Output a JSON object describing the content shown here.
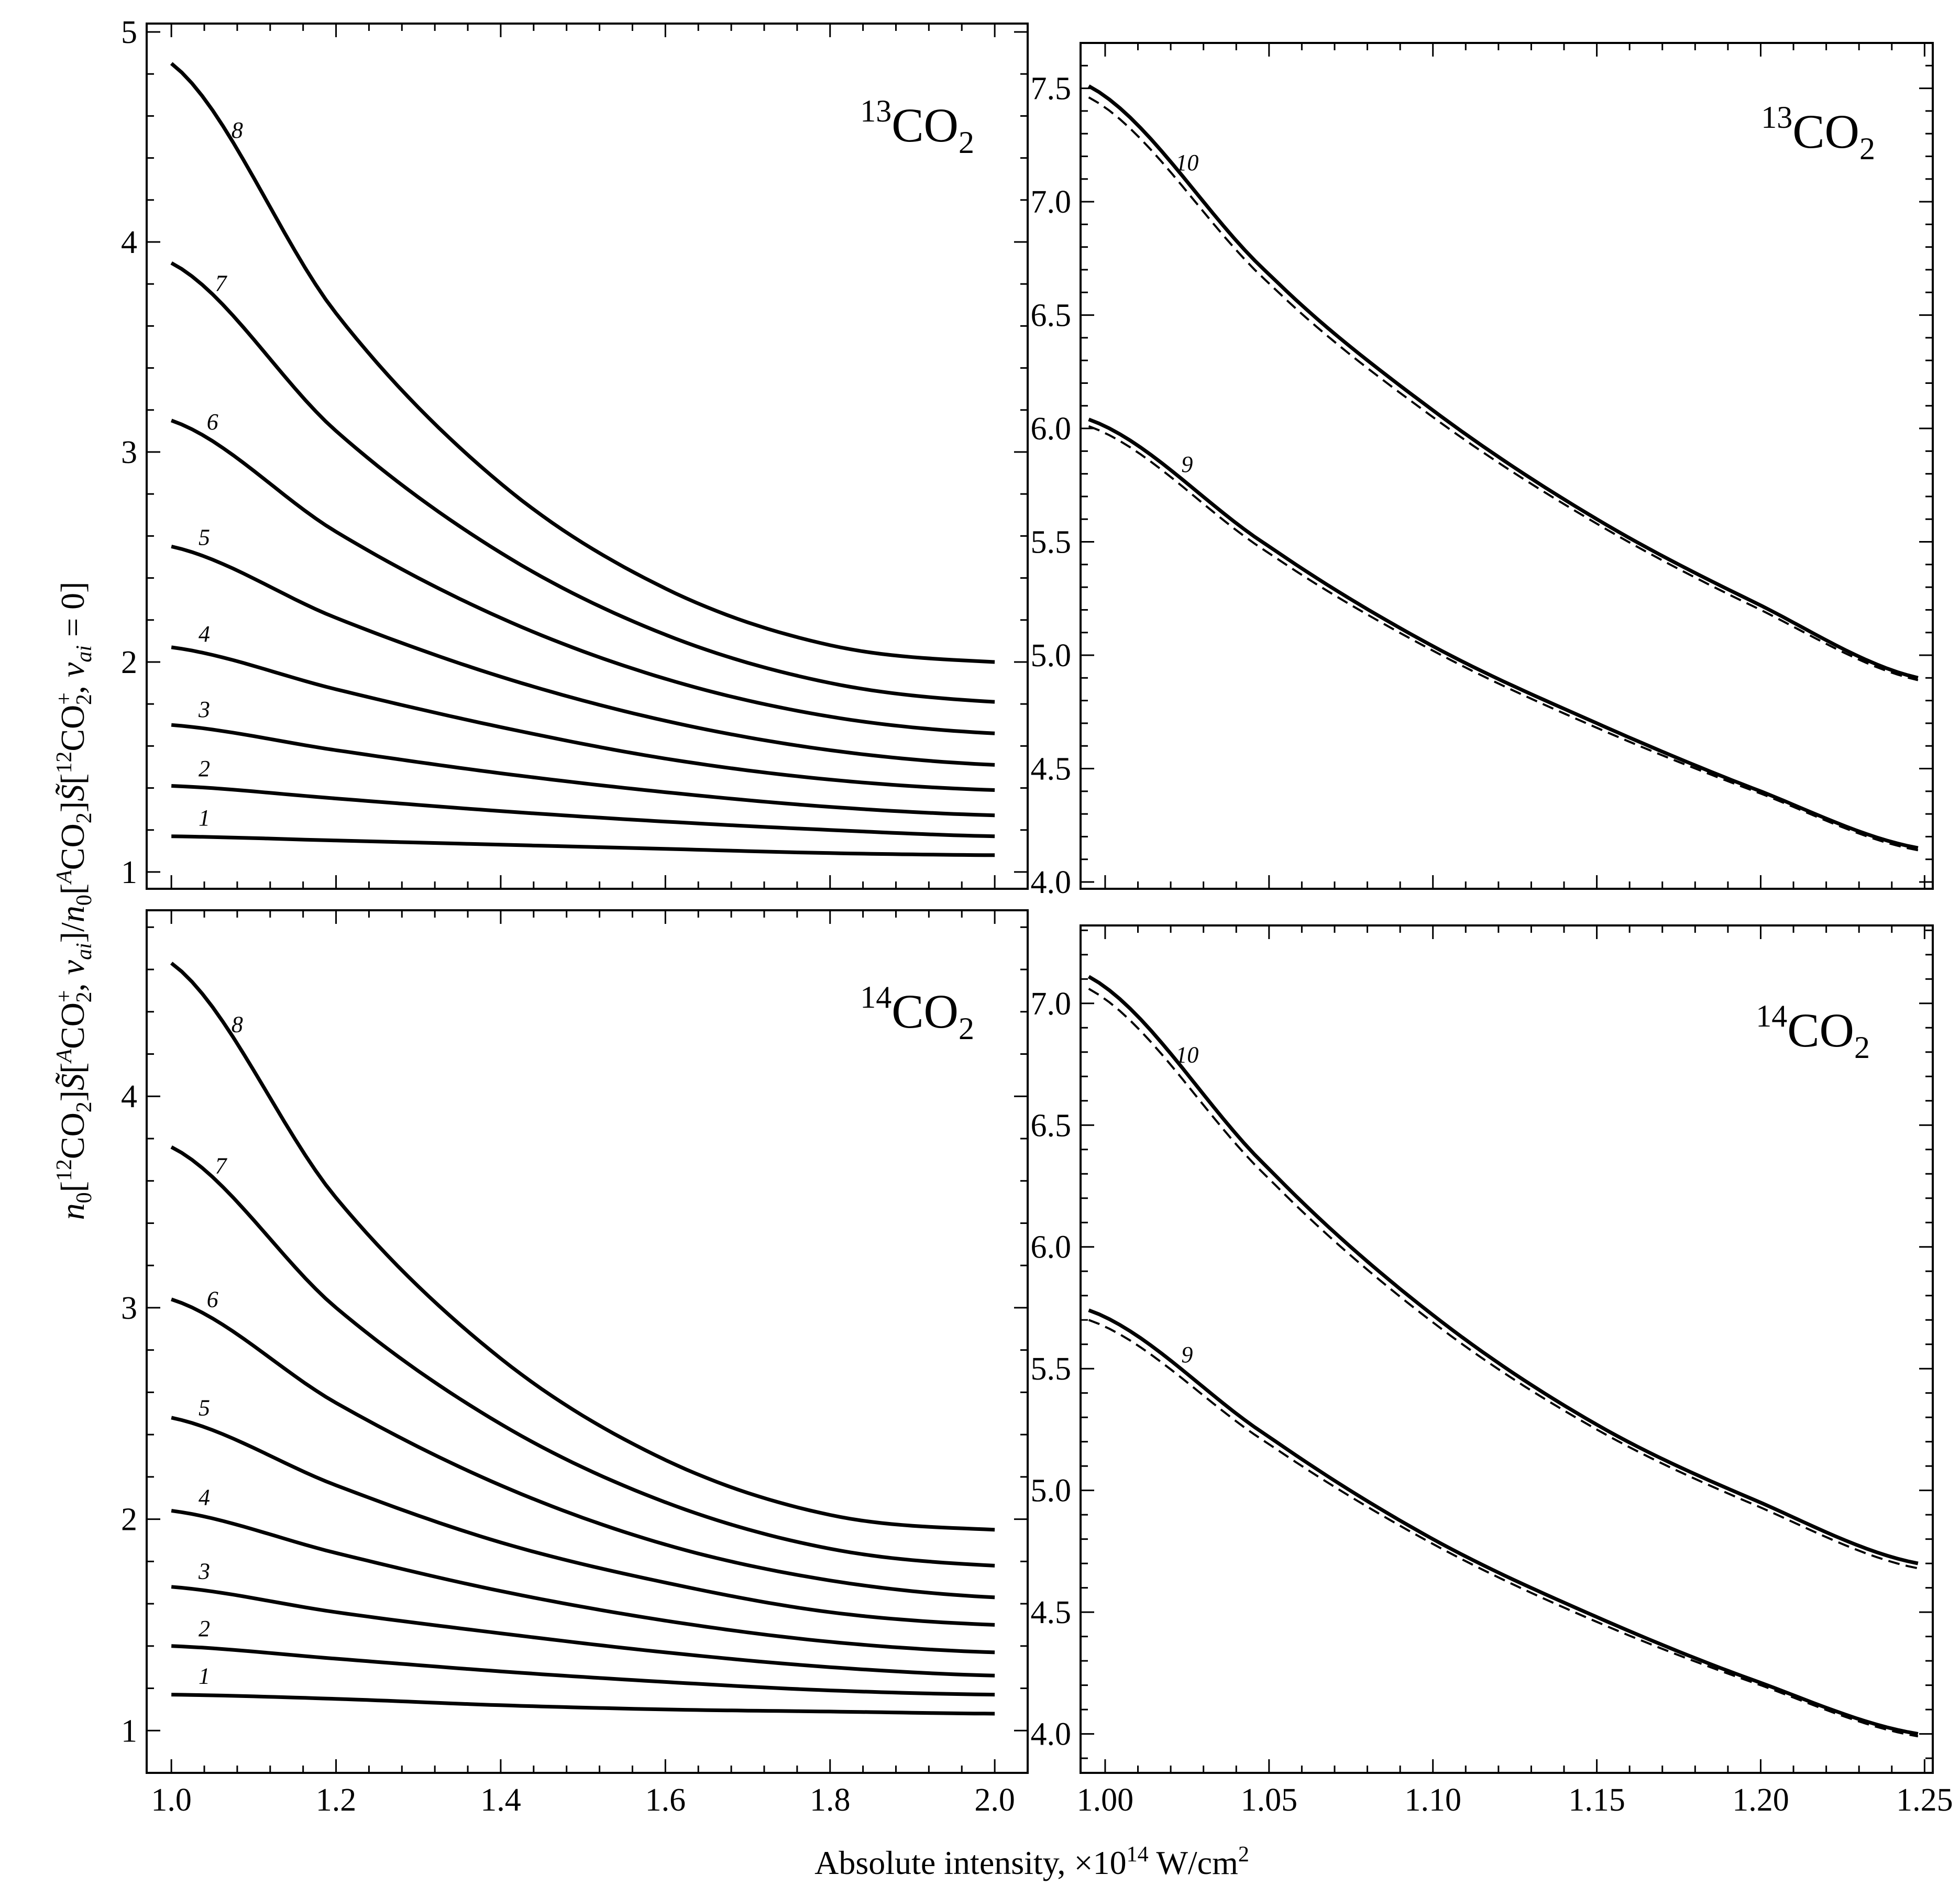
{
  "figure": {
    "xlabel": "Absolute intensity, ×10",
    "xlabel_exp": "14",
    "xlabel_unit": " W/cm",
    "xlabel_unit_exp": "2",
    "ylabel": "n0[12CO2]S̃[ACO2+, vai]/n0[ACO2]S̃[12CO2+, vai=0]",
    "ylabel_parts": {
      "n": "n",
      "sub0": "0",
      "lb1": "[",
      "sup12": "12",
      "co": "CO",
      "sub2": "2",
      "rb1": "]",
      "s": "S̃",
      "lb2": "[",
      "supA": "A",
      "co2": "CO",
      "plus": "+",
      "sub2b": "2",
      "comma": ", ",
      "v": "v",
      "subai": "ai",
      "rb2": "]/",
      "n2": "n",
      "sub0b": "0",
      "lb3": "[",
      "supA2": "A",
      "co3": "CO",
      "sub2c": "2",
      "rb3": "]",
      "s2": "S̃",
      "lb4": "[",
      "sup12b": "12",
      "co4": "CO",
      "plus2": "+",
      "sub2d": "2",
      "comma2": ", ",
      "v2": "v",
      "subai2": "ai",
      "eq": " = 0]"
    }
  },
  "chart_data": [
    {
      "type": "line",
      "panel": "top-left",
      "title": "13CO2",
      "title_parts": {
        "sup": "13",
        "base": "CO",
        "sub": "2"
      },
      "xlim": [
        0.97,
        2.04
      ],
      "ylim": [
        0.92,
        5.04
      ],
      "xticks": [
        1.0,
        1.2,
        1.4,
        1.6,
        1.8,
        2.0
      ],
      "xtick_labels": [
        "1.0",
        "1.2",
        "1.4",
        "1.6",
        "1.8",
        "2.0"
      ],
      "yticks": [
        1,
        2,
        3,
        4,
        5
      ],
      "ytick_labels": [
        "1",
        "2",
        "3",
        "4",
        "5"
      ],
      "x_range": [
        1.0,
        2.0
      ],
      "series": [
        {
          "name": "1",
          "label_x": 1.04,
          "points": [
            [
              1.0,
              1.17
            ],
            [
              1.2,
              1.15
            ],
            [
              1.4,
              1.13
            ],
            [
              1.6,
              1.11
            ],
            [
              1.8,
              1.09
            ],
            [
              2.0,
              1.08
            ]
          ]
        },
        {
          "name": "2",
          "label_x": 1.04,
          "points": [
            [
              1.0,
              1.41
            ],
            [
              1.2,
              1.35
            ],
            [
              1.4,
              1.29
            ],
            [
              1.6,
              1.24
            ],
            [
              1.8,
              1.2
            ],
            [
              2.0,
              1.17
            ]
          ]
        },
        {
          "name": "3",
          "label_x": 1.04,
          "points": [
            [
              1.0,
              1.7
            ],
            [
              1.2,
              1.58
            ],
            [
              1.4,
              1.47
            ],
            [
              1.6,
              1.38
            ],
            [
              1.8,
              1.31
            ],
            [
              2.0,
              1.27
            ]
          ]
        },
        {
          "name": "4",
          "label_x": 1.04,
          "points": [
            [
              1.0,
              2.07
            ],
            [
              1.2,
              1.87
            ],
            [
              1.4,
              1.69
            ],
            [
              1.6,
              1.54
            ],
            [
              1.8,
              1.44
            ],
            [
              2.0,
              1.39
            ]
          ]
        },
        {
          "name": "5",
          "label_x": 1.04,
          "points": [
            [
              1.0,
              2.55
            ],
            [
              1.2,
              2.21
            ],
            [
              1.4,
              1.93
            ],
            [
              1.6,
              1.72
            ],
            [
              1.8,
              1.58
            ],
            [
              2.0,
              1.51
            ]
          ]
        },
        {
          "name": "6",
          "label_x": 1.05,
          "points": [
            [
              1.0,
              3.15
            ],
            [
              1.2,
              2.62
            ],
            [
              1.4,
              2.21
            ],
            [
              1.6,
              1.92
            ],
            [
              1.8,
              1.74
            ],
            [
              2.0,
              1.66
            ]
          ]
        },
        {
          "name": "7",
          "label_x": 1.06,
          "points": [
            [
              1.0,
              3.9
            ],
            [
              1.2,
              3.1
            ],
            [
              1.4,
              2.52
            ],
            [
              1.6,
              2.13
            ],
            [
              1.8,
              1.9
            ],
            [
              2.0,
              1.81
            ]
          ]
        },
        {
          "name": "8",
          "label_x": 1.08,
          "points": [
            [
              1.0,
              4.85
            ],
            [
              1.2,
              3.66
            ],
            [
              1.4,
              2.85
            ],
            [
              1.6,
              2.35
            ],
            [
              1.8,
              2.08
            ],
            [
              2.0,
              2.0
            ]
          ]
        }
      ]
    },
    {
      "type": "line",
      "panel": "top-right",
      "title": "13CO2",
      "title_parts": {
        "sup": "13",
        "base": "CO",
        "sub": "2"
      },
      "xlim": [
        0.9925,
        1.2525
      ],
      "ylim": [
        3.97,
        7.7
      ],
      "xticks": [
        1.0,
        1.05,
        1.1,
        1.15,
        1.2,
        1.25
      ],
      "xtick_labels": [
        "1.00",
        "1.05",
        "1.10",
        "1.15",
        "1.20",
        "1.25"
      ],
      "yticks": [
        4.0,
        4.5,
        5.0,
        5.5,
        6.0,
        6.5,
        7.0,
        7.5
      ],
      "ytick_labels": [
        "4.0",
        "4.5",
        "5.0",
        "5.5",
        "6.0",
        "6.5",
        "7.0",
        "7.5"
      ],
      "x_range": [
        0.995,
        1.248
      ],
      "series": [
        {
          "name": "9",
          "style": "solid",
          "label_x": 1.025,
          "points": [
            [
              0.995,
              6.04
            ],
            [
              1.05,
              5.48
            ],
            [
              1.1,
              5.04
            ],
            [
              1.15,
              4.7
            ],
            [
              1.2,
              4.4
            ],
            [
              1.248,
              4.15
            ]
          ]
        },
        {
          "name": "9",
          "style": "dashed",
          "points": [
            [
              0.995,
              6.01
            ],
            [
              1.05,
              5.45
            ],
            [
              1.1,
              5.02
            ],
            [
              1.15,
              4.68
            ],
            [
              1.2,
              4.39
            ],
            [
              1.248,
              4.14
            ]
          ]
        },
        {
          "name": "10",
          "style": "solid",
          "label_x": 1.025,
          "points": [
            [
              0.995,
              7.51
            ],
            [
              1.05,
              6.68
            ],
            [
              1.1,
              6.08
            ],
            [
              1.15,
              5.6
            ],
            [
              1.2,
              5.22
            ],
            [
              1.248,
              4.9
            ]
          ]
        },
        {
          "name": "10",
          "style": "dashed",
          "points": [
            [
              0.995,
              7.46
            ],
            [
              1.05,
              6.64
            ],
            [
              1.1,
              6.05
            ],
            [
              1.15,
              5.58
            ],
            [
              1.2,
              5.2
            ],
            [
              1.248,
              4.89
            ]
          ]
        }
      ]
    },
    {
      "type": "line",
      "panel": "bottom-left",
      "title": "14CO2",
      "title_parts": {
        "sup": "14",
        "base": "CO",
        "sub": "2"
      },
      "xlim": [
        0.97,
        2.04
      ],
      "ylim": [
        0.8,
        4.88
      ],
      "xticks": [
        1.0,
        1.2,
        1.4,
        1.6,
        1.8,
        2.0
      ],
      "xtick_labels": [
        "1.0",
        "1.2",
        "1.4",
        "1.6",
        "1.8",
        "2.0"
      ],
      "yticks": [
        1,
        2,
        3,
        4
      ],
      "ytick_labels": [
        "1",
        "2",
        "3",
        "4"
      ],
      "x_range": [
        1.0,
        2.0
      ],
      "series": [
        {
          "name": "1",
          "label_x": 1.04,
          "points": [
            [
              1.0,
              1.17
            ],
            [
              1.2,
              1.15
            ],
            [
              1.4,
              1.12
            ],
            [
              1.6,
              1.1
            ],
            [
              1.8,
              1.09
            ],
            [
              2.0,
              1.08
            ]
          ]
        },
        {
          "name": "2",
          "label_x": 1.04,
          "points": [
            [
              1.0,
              1.4
            ],
            [
              1.2,
              1.34
            ],
            [
              1.4,
              1.28
            ],
            [
              1.6,
              1.23
            ],
            [
              1.8,
              1.19
            ],
            [
              2.0,
              1.17
            ]
          ]
        },
        {
          "name": "3",
          "label_x": 1.04,
          "points": [
            [
              1.0,
              1.68
            ],
            [
              1.2,
              1.56
            ],
            [
              1.4,
              1.46
            ],
            [
              1.6,
              1.37
            ],
            [
              1.8,
              1.3
            ],
            [
              2.0,
              1.26
            ]
          ]
        },
        {
          "name": "4",
          "label_x": 1.04,
          "points": [
            [
              1.0,
              2.04
            ],
            [
              1.2,
              1.84
            ],
            [
              1.4,
              1.66
            ],
            [
              1.6,
              1.52
            ],
            [
              1.8,
              1.42
            ],
            [
              2.0,
              1.37
            ]
          ]
        },
        {
          "name": "5",
          "label_x": 1.04,
          "points": [
            [
              1.0,
              2.48
            ],
            [
              1.2,
              2.16
            ],
            [
              1.4,
              1.89
            ],
            [
              1.6,
              1.7
            ],
            [
              1.8,
              1.56
            ],
            [
              2.0,
              1.5
            ]
          ]
        },
        {
          "name": "6",
          "label_x": 1.05,
          "points": [
            [
              1.0,
              3.04
            ],
            [
              1.2,
              2.55
            ],
            [
              1.4,
              2.16
            ],
            [
              1.6,
              1.88
            ],
            [
              1.8,
              1.71
            ],
            [
              2.0,
              1.63
            ]
          ]
        },
        {
          "name": "7",
          "label_x": 1.06,
          "points": [
            [
              1.0,
              3.76
            ],
            [
              1.2,
              3.0
            ],
            [
              1.4,
              2.45
            ],
            [
              1.6,
              2.08
            ],
            [
              1.8,
              1.86
            ],
            [
              2.0,
              1.78
            ]
          ]
        },
        {
          "name": "8",
          "label_x": 1.08,
          "points": [
            [
              1.0,
              4.63
            ],
            [
              1.2,
              3.52
            ],
            [
              1.4,
              2.76
            ],
            [
              1.6,
              2.28
            ],
            [
              1.8,
              2.02
            ],
            [
              2.0,
              1.95
            ]
          ]
        }
      ]
    },
    {
      "type": "line",
      "panel": "bottom-right",
      "title": "14CO2",
      "title_parts": {
        "sup": "14",
        "base": "CO",
        "sub": "2"
      },
      "xlim": [
        0.9925,
        1.2525
      ],
      "ylim": [
        3.84,
        7.32
      ],
      "xticks": [
        1.0,
        1.05,
        1.1,
        1.15,
        1.2,
        1.25
      ],
      "xtick_labels": [
        "1.00",
        "1.05",
        "1.10",
        "1.15",
        "1.20",
        "1.25"
      ],
      "yticks": [
        4.0,
        4.5,
        5.0,
        5.5,
        6.0,
        6.5,
        7.0
      ],
      "ytick_labels": [
        "4.0",
        "4.5",
        "5.0",
        "5.5",
        "6.0",
        "6.5",
        "7.0"
      ],
      "x_range": [
        0.995,
        1.248
      ],
      "series": [
        {
          "name": "9",
          "style": "solid",
          "label_x": 1.025,
          "points": [
            [
              0.995,
              5.74
            ],
            [
              1.05,
              5.22
            ],
            [
              1.1,
              4.8
            ],
            [
              1.15,
              4.48
            ],
            [
              1.2,
              4.21
            ],
            [
              1.248,
              4.0
            ]
          ]
        },
        {
          "name": "9",
          "style": "dashed",
          "points": [
            [
              0.995,
              5.7
            ],
            [
              1.05,
              5.19
            ],
            [
              1.1,
              4.78
            ],
            [
              1.15,
              4.46
            ],
            [
              1.2,
              4.2
            ],
            [
              1.248,
              3.99
            ]
          ]
        },
        {
          "name": "10",
          "style": "solid",
          "label_x": 1.025,
          "points": [
            [
              0.995,
              7.11
            ],
            [
              1.05,
              6.32
            ],
            [
              1.1,
              5.72
            ],
            [
              1.15,
              5.27
            ],
            [
              1.2,
              4.95
            ],
            [
              1.248,
              4.7
            ]
          ]
        },
        {
          "name": "10",
          "style": "dashed",
          "points": [
            [
              0.995,
              7.06
            ],
            [
              1.05,
              6.28
            ],
            [
              1.1,
              5.69
            ],
            [
              1.15,
              5.25
            ],
            [
              1.2,
              4.93
            ],
            [
              1.248,
              4.68
            ]
          ]
        }
      ]
    }
  ]
}
